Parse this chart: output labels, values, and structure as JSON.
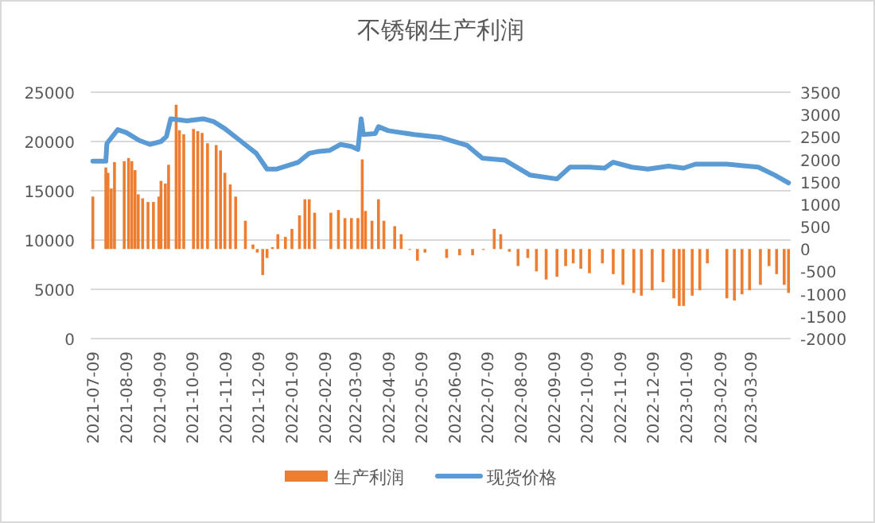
{
  "chart_data": {
    "type": "bar",
    "title": "不锈钢生产利润",
    "grid": "y",
    "legend": "bottom",
    "xlim": [
      "2021-07-07",
      "2023-04-15"
    ],
    "xticks": [
      "2021-07-09",
      "2021-08-09",
      "2021-09-09",
      "2021-10-09",
      "2021-11-09",
      "2021-12-09",
      "2022-01-09",
      "2022-02-09",
      "2022-03-09",
      "2022-04-09",
      "2022-05-09",
      "2022-06-09",
      "2022-07-09",
      "2022-08-09",
      "2022-09-09",
      "2022-10-09",
      "2022-11-09",
      "2022-12-09",
      "2023-01-09",
      "2023-02-09",
      "2023-03-09"
    ],
    "ylim": [
      0,
      25000
    ],
    "yticks": [
      0,
      5000,
      10000,
      15000,
      20000,
      25000
    ],
    "y2lim": [
      -2000,
      3500
    ],
    "y2ticks": [
      -2000,
      -1500,
      -1000,
      -500,
      0,
      500,
      1000,
      1500,
      2000,
      2500,
      3000,
      3500
    ],
    "series": [
      {
        "name": "生产利润",
        "axis": "y2",
        "color": "#ed7d31",
        "x": [
          "2021-07-09",
          "2021-07-21",
          "2021-07-23",
          "2021-07-26",
          "2021-07-29",
          "2021-08-07",
          "2021-08-11",
          "2021-08-14",
          "2021-08-17",
          "2021-08-20",
          "2021-08-24",
          "2021-08-29",
          "2021-09-03",
          "2021-09-08",
          "2021-09-10",
          "2021-09-14",
          "2021-09-17",
          "2021-09-24",
          "2021-09-27",
          "2021-10-01",
          "2021-10-10",
          "2021-10-14",
          "2021-10-18",
          "2021-10-23",
          "2021-10-31",
          "2021-11-04",
          "2021-11-08",
          "2021-11-13",
          "2021-11-18",
          "2021-11-27",
          "2021-12-04",
          "2021-12-08",
          "2021-12-13",
          "2021-12-17",
          "2021-12-22",
          "2021-12-27",
          "2022-01-03",
          "2022-01-09",
          "2022-01-16",
          "2022-01-21",
          "2022-01-25",
          "2022-01-30",
          "2022-02-14",
          "2022-02-21",
          "2022-02-27",
          "2022-03-05",
          "2022-03-11",
          "2022-03-15",
          "2022-03-18",
          "2022-03-24",
          "2022-03-30",
          "2022-04-04",
          "2022-04-14",
          "2022-04-20",
          "2022-04-28",
          "2022-05-05",
          "2022-05-12",
          "2022-06-01",
          "2022-06-13",
          "2022-06-25",
          "2022-07-05",
          "2022-07-15",
          "2022-07-21",
          "2022-07-29",
          "2022-08-06",
          "2022-08-15",
          "2022-08-23",
          "2022-09-01",
          "2022-09-11",
          "2022-09-19",
          "2022-09-26",
          "2022-10-03",
          "2022-10-11",
          "2022-10-23",
          "2022-11-02",
          "2022-11-11",
          "2022-11-21",
          "2022-11-28",
          "2022-12-08",
          "2022-12-18",
          "2022-12-28",
          "2023-01-02",
          "2023-01-06",
          "2023-01-14",
          "2023-01-21",
          "2023-01-28",
          "2023-02-15",
          "2023-02-22",
          "2023-03-01",
          "2023-03-08",
          "2023-03-18",
          "2023-03-26",
          "2023-04-02",
          "2023-04-09",
          "2023-04-13"
        ],
        "values": [
          1170,
          1820,
          1700,
          1350,
          1940,
          1960,
          2030,
          1960,
          1760,
          1220,
          1130,
          1050,
          1050,
          1170,
          1520,
          1460,
          1880,
          3220,
          2650,
          2560,
          2680,
          2630,
          2590,
          2360,
          2320,
          2200,
          1700,
          1440,
          1170,
          630,
          100,
          -80,
          -580,
          -200,
          40,
          330,
          270,
          450,
          750,
          1110,
          1110,
          810,
          810,
          870,
          690,
          690,
          690,
          2000,
          850,
          630,
          1110,
          630,
          510,
          330,
          -20,
          -260,
          -80,
          -200,
          -140,
          -140,
          -20,
          450,
          330,
          -60,
          -380,
          -200,
          -500,
          -680,
          -620,
          -380,
          -320,
          -440,
          -540,
          -320,
          -560,
          -800,
          -980,
          -1040,
          -920,
          -740,
          -1100,
          -1270,
          -1270,
          -1040,
          -920,
          -320,
          -1100,
          -1150,
          -1010,
          -920,
          -800,
          -380,
          -560,
          -800,
          -980
        ]
      },
      {
        "name": "现货价格",
        "type": "line",
        "color": "#5b9bd5",
        "x": [
          "2021-07-09",
          "2021-07-21",
          "2021-07-22",
          "2021-08-01",
          "2021-08-09",
          "2021-08-21",
          "2021-08-31",
          "2021-09-10",
          "2021-09-15",
          "2021-09-19",
          "2021-10-04",
          "2021-10-19",
          "2021-10-29",
          "2021-11-08",
          "2021-11-22",
          "2021-12-07",
          "2021-12-17",
          "2021-12-26",
          "2022-01-15",
          "2022-01-25",
          "2022-02-03",
          "2022-02-13",
          "2022-02-23",
          "2022-03-05",
          "2022-03-11",
          "2022-03-14",
          "2022-03-16",
          "2022-03-27",
          "2022-03-30",
          "2022-04-08",
          "2022-05-02",
          "2022-05-27",
          "2022-06-05",
          "2022-06-20",
          "2022-07-04",
          "2022-07-25",
          "2022-08-17",
          "2022-09-11",
          "2022-09-23",
          "2022-10-11",
          "2022-10-25",
          "2022-11-02",
          "2022-11-19",
          "2022-12-04",
          "2022-12-23",
          "2023-01-06",
          "2023-01-17",
          "2023-02-15",
          "2023-03-06",
          "2023-03-16",
          "2023-03-31",
          "2023-04-13"
        ],
        "values": [
          18000,
          18000,
          19800,
          21200,
          20900,
          20100,
          19700,
          20000,
          20500,
          22300,
          22100,
          22300,
          22000,
          21300,
          20100,
          18800,
          17200,
          17200,
          17900,
          18800,
          19000,
          19100,
          19700,
          19500,
          19200,
          22300,
          20700,
          20800,
          21500,
          21100,
          20700,
          20400,
          20100,
          19600,
          18300,
          18100,
          16600,
          16200,
          17400,
          17400,
          17300,
          17900,
          17400,
          17200,
          17500,
          17300,
          17700,
          17700,
          17500,
          17400,
          16600,
          15800
        ]
      }
    ]
  }
}
